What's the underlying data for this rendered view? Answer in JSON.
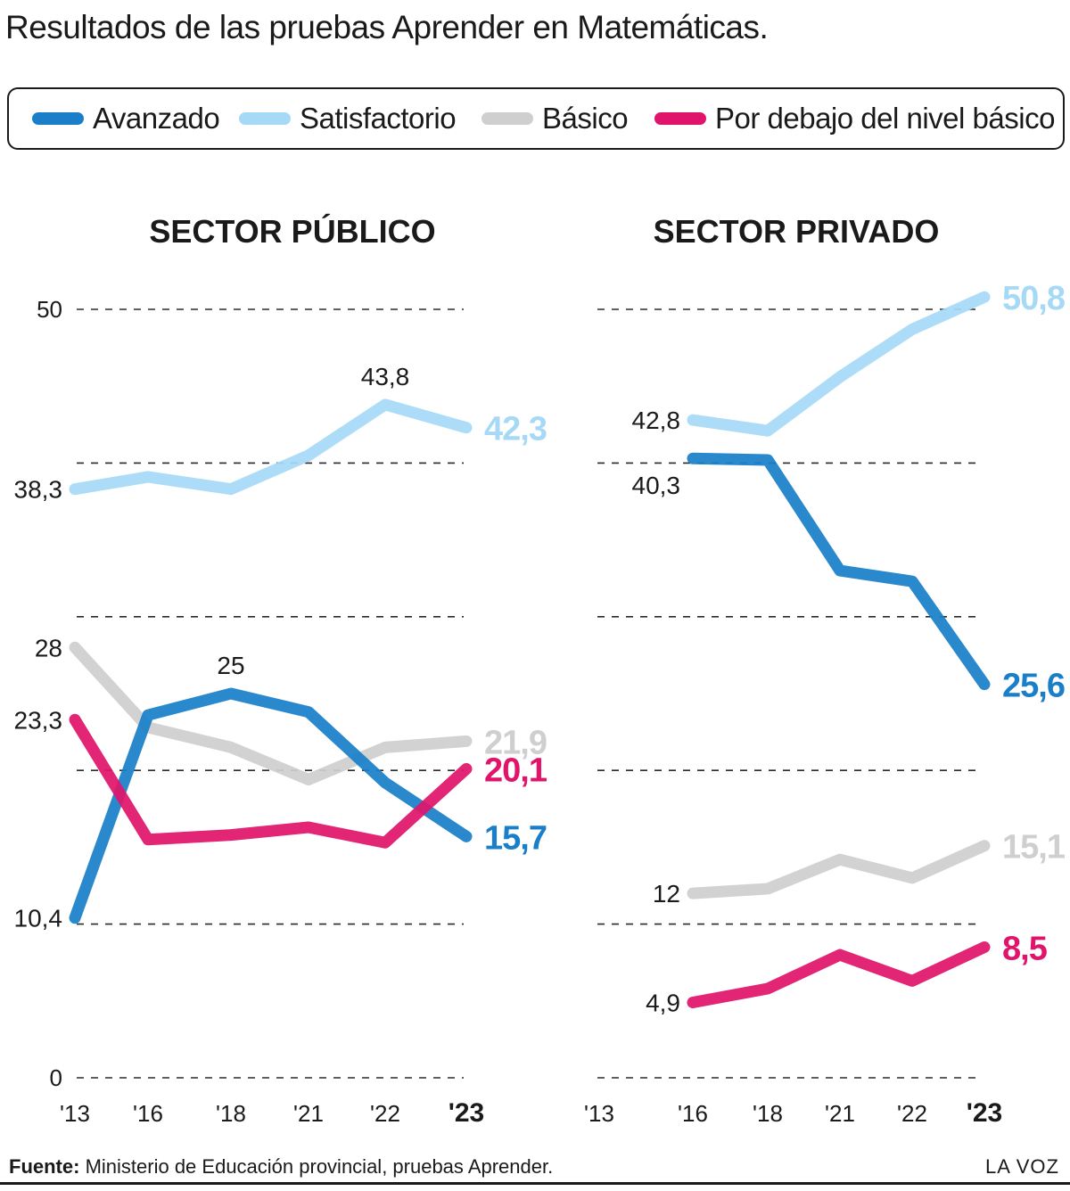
{
  "title": "Resultados de las pruebas Aprender en Matemáticas.",
  "legend": [
    {
      "label": "Avanzado",
      "color": "#1a7fc8"
    },
    {
      "label": "Satisfactorio",
      "color": "#a6d9f6"
    },
    {
      "label": "Básico",
      "color": "#cfcfcf"
    },
    {
      "label": "Por debajo del nivel básico",
      "color": "#e0146a"
    }
  ],
  "source_label": "Fuente:",
  "source_text": "Ministerio de Educación provincial, pruebas Aprender.",
  "brand": "LA VOZ",
  "chart_data": [
    {
      "type": "line",
      "title": "SECTOR PÚBLICO",
      "x": [
        "'13",
        "'16",
        "'18",
        "'21",
        "'22",
        "'23"
      ],
      "ylim": [
        0,
        50
      ],
      "y_ticks": [
        "50",
        "0"
      ],
      "grid": true,
      "series": [
        {
          "name": "Satisfactorio",
          "color": "#a6d9f6",
          "values": [
            38.3,
            39.1,
            38.3,
            40.5,
            43.8,
            42.3
          ],
          "labels": [
            {
              "index": 0,
              "text": "38,3",
              "style": "start"
            },
            {
              "index": 4,
              "text": "43,8",
              "style": "peak"
            },
            {
              "index": 5,
              "text": "42,3",
              "style": "end"
            }
          ]
        },
        {
          "name": "Básico",
          "color": "#cfcfcf",
          "values": [
            28,
            22.8,
            21.5,
            19.4,
            21.5,
            21.9
          ],
          "labels": [
            {
              "index": 0,
              "text": "28",
              "style": "start"
            },
            {
              "index": 5,
              "text": "21,9",
              "style": "end"
            }
          ]
        },
        {
          "name": "Avanzado",
          "color": "#1a7fc8",
          "values": [
            10.4,
            23.6,
            25,
            23.8,
            19.2,
            15.7
          ],
          "labels": [
            {
              "index": 0,
              "text": "10,4",
              "style": "start"
            },
            {
              "index": 2,
              "text": "25",
              "style": "peak"
            },
            {
              "index": 5,
              "text": "15,7",
              "style": "end"
            }
          ]
        },
        {
          "name": "Por debajo del nivel básico",
          "color": "#e0146a",
          "values": [
            23.3,
            15.5,
            15.8,
            16.3,
            15.3,
            20.1
          ],
          "labels": [
            {
              "index": 0,
              "text": "23,3",
              "style": "start"
            },
            {
              "index": 5,
              "text": "20,1",
              "style": "end"
            }
          ]
        }
      ]
    },
    {
      "type": "line",
      "title": "SECTOR PRIVADO",
      "x": [
        "'13",
        "'16",
        "'18",
        "'21",
        "'22",
        "'23"
      ],
      "ylim": [
        0,
        50
      ],
      "grid": true,
      "series": [
        {
          "name": "Satisfactorio",
          "color": "#a6d9f6",
          "values": [
            null,
            42.8,
            42.1,
            45.6,
            48.7,
            50.8
          ],
          "labels": [
            {
              "index": 1,
              "text": "42,8",
              "style": "start"
            },
            {
              "index": 5,
              "text": "50,8",
              "style": "end"
            }
          ]
        },
        {
          "name": "Avanzado",
          "color": "#1a7fc8",
          "values": [
            null,
            40.3,
            40.2,
            33,
            32.3,
            25.6
          ],
          "labels": [
            {
              "index": 1,
              "text": "40,3",
              "style": "below-start"
            },
            {
              "index": 5,
              "text": "25,6",
              "style": "end"
            }
          ]
        },
        {
          "name": "Básico",
          "color": "#cfcfcf",
          "values": [
            null,
            12,
            12.3,
            14.2,
            13,
            15.1
          ],
          "labels": [
            {
              "index": 1,
              "text": "12",
              "style": "start"
            },
            {
              "index": 5,
              "text": "15,1",
              "style": "end"
            }
          ]
        },
        {
          "name": "Por debajo del nivel básico",
          "color": "#e0146a",
          "values": [
            null,
            4.9,
            5.8,
            8,
            6.3,
            8.5
          ],
          "labels": [
            {
              "index": 1,
              "text": "4,9",
              "style": "start"
            },
            {
              "index": 5,
              "text": "8,5",
              "style": "end"
            }
          ]
        }
      ]
    }
  ]
}
